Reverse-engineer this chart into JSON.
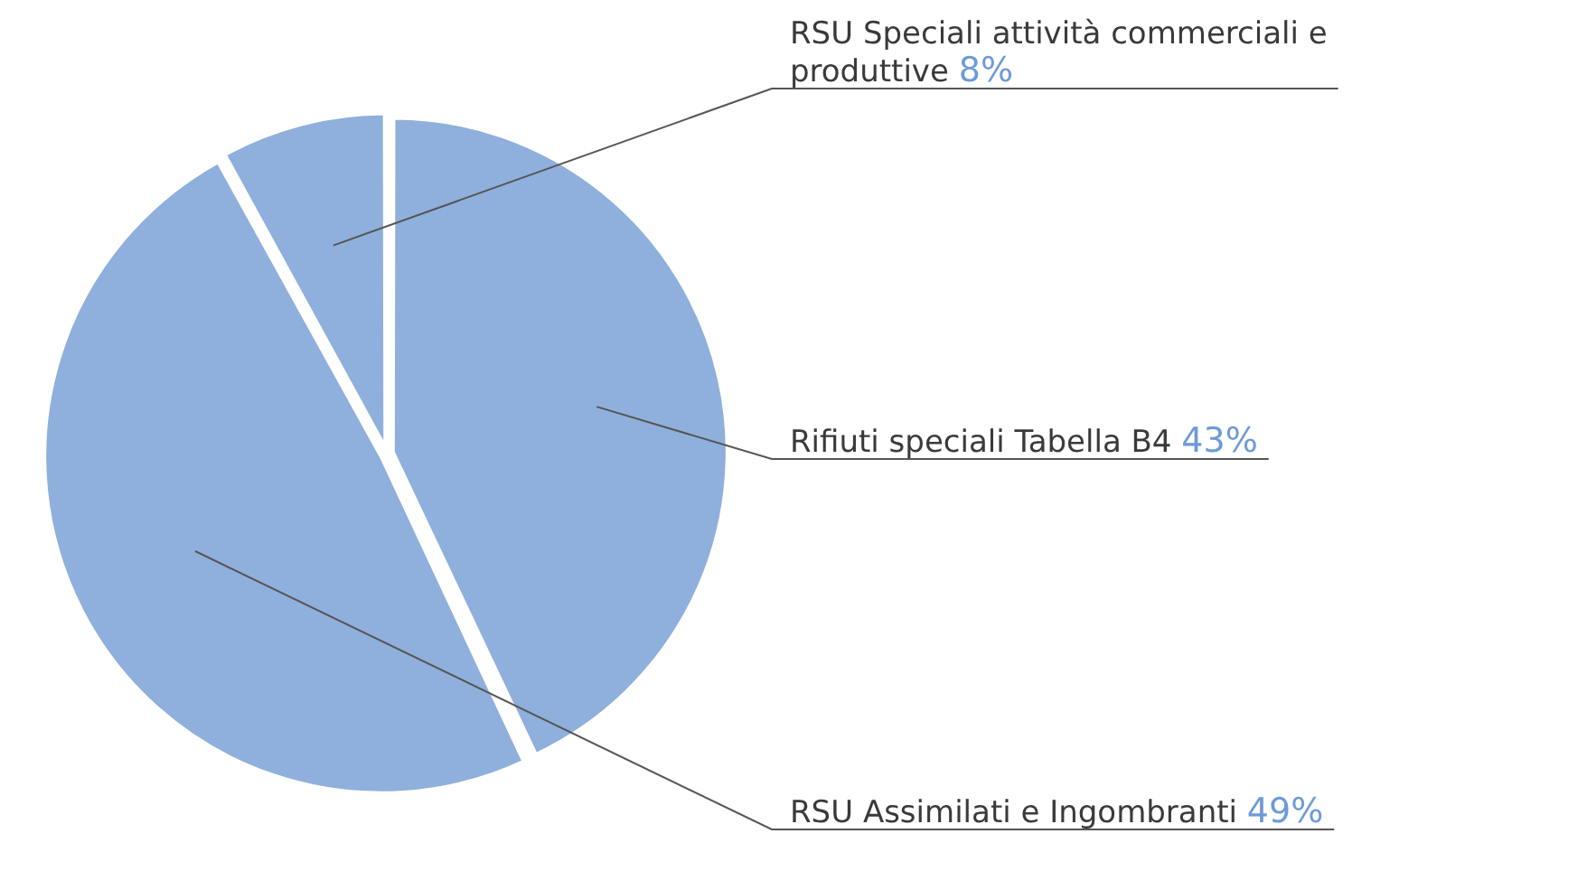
{
  "chart_data": {
    "type": "pie",
    "categories": [
      "Rifiuti speciali Tabella B4",
      "RSU Assimilati e Ingombranti",
      "RSU Speciali attività commerciali e produttive"
    ],
    "values": [
      43,
      49,
      8
    ],
    "colors": [
      "#8fb0dc",
      "#8fb0dc",
      "#8fb0dc"
    ],
    "value_labels": [
      "43%",
      "49%",
      "8%"
    ],
    "legend": false
  }
}
